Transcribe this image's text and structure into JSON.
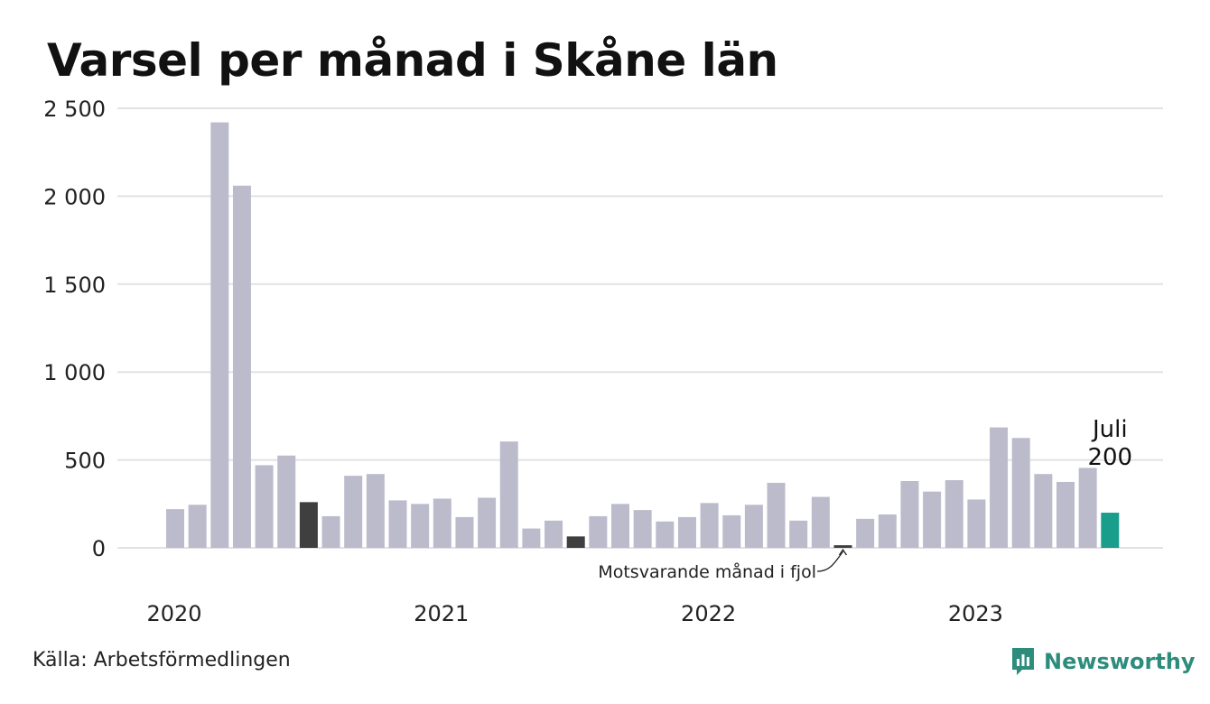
{
  "title": "Varsel per månad i Skåne län",
  "source": "Källa: Arbetsförmedlingen",
  "brand": "Newsworthy",
  "annotation": "Motsvarande månad i fjol",
  "highlight_label": {
    "month": "Juli",
    "value": "200"
  },
  "colors": {
    "normal": "#bcbbcc",
    "same_month_prior_years": "#3f3f3f",
    "current": "#1a9e8c",
    "gridline": "#e2e2e6",
    "brand": "#2e8c7c"
  },
  "chart_data": {
    "type": "bar",
    "title": "Varsel per månad i Skåne län",
    "xlabel": "",
    "ylabel": "",
    "ylim": [
      0,
      2500
    ],
    "y_ticks": [
      0,
      500,
      1000,
      1500,
      2000,
      2500
    ],
    "y_tick_labels": [
      "0",
      "500",
      "1 000",
      "1 500",
      "2 000",
      "2 500"
    ],
    "x_tick_labels": [
      {
        "label": "2020",
        "month_index": 0
      },
      {
        "label": "2021",
        "month_index": 12
      },
      {
        "label": "2022",
        "month_index": 24
      },
      {
        "label": "2023",
        "month_index": 36
      }
    ],
    "grid": true,
    "months": [
      "2020-01",
      "2020-02",
      "2020-03",
      "2020-04",
      "2020-05",
      "2020-06",
      "2020-07",
      "2020-08",
      "2020-09",
      "2020-10",
      "2020-11",
      "2020-12",
      "2021-01",
      "2021-02",
      "2021-03",
      "2021-04",
      "2021-05",
      "2021-06",
      "2021-07",
      "2021-08",
      "2021-09",
      "2021-10",
      "2021-11",
      "2021-12",
      "2022-01",
      "2022-02",
      "2022-03",
      "2022-04",
      "2022-05",
      "2022-06",
      "2022-07",
      "2022-08",
      "2022-09",
      "2022-10",
      "2022-11",
      "2022-12",
      "2023-01",
      "2023-02",
      "2023-03",
      "2023-04",
      "2023-05",
      "2023-06",
      "2023-07"
    ],
    "values": [
      220,
      245,
      2420,
      2060,
      470,
      525,
      260,
      180,
      410,
      420,
      270,
      250,
      280,
      175,
      285,
      605,
      110,
      155,
      65,
      180,
      250,
      215,
      150,
      175,
      255,
      185,
      245,
      370,
      155,
      290,
      15,
      165,
      190,
      380,
      320,
      385,
      275,
      685,
      625,
      420,
      375,
      455,
      200
    ],
    "same_month_prior_years": [
      6,
      18,
      30
    ],
    "current_index": 42
  }
}
